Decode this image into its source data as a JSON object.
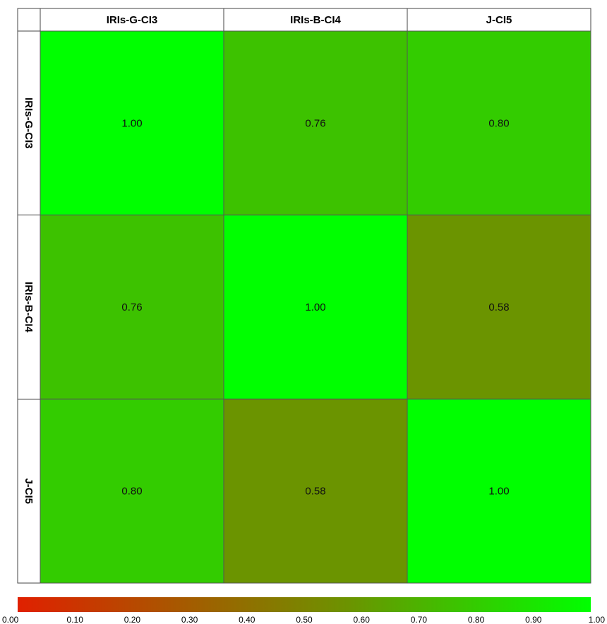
{
  "chart_data": {
    "type": "heatmap",
    "columns": [
      "IRIs-G-CI3",
      "IRIs-B-CI4",
      "J-CI5"
    ],
    "rows": [
      "IRIs-G-CI3",
      "IRIs-B-CI4",
      "J-CI5"
    ],
    "values": [
      [
        1.0,
        0.76,
        0.8
      ],
      [
        0.76,
        1.0,
        0.58
      ],
      [
        0.8,
        0.58,
        1.0
      ]
    ],
    "value_labels": [
      [
        "1.00",
        "0.76",
        "0.80"
      ],
      [
        "0.76",
        "1.00",
        "0.58"
      ],
      [
        "0.80",
        "0.58",
        "1.00"
      ]
    ],
    "color_scale": {
      "min": 0.0,
      "max": 1.0,
      "min_color": "#e02000",
      "mid_color": "#6b9400",
      "max_color": "#00ff00",
      "ticks": [
        "0.00",
        "0.10",
        "0.20",
        "0.30",
        "0.40",
        "0.50",
        "0.60",
        "0.70",
        "0.80",
        "0.90",
        "1.00"
      ]
    },
    "legend": "bottom"
  }
}
